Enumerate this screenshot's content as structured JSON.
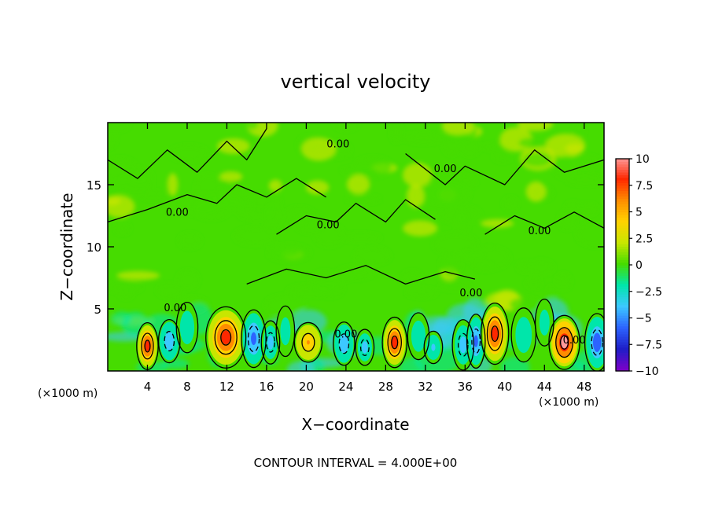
{
  "chart_data": {
    "type": "heatmap",
    "title": "vertical velocity",
    "xlabel": "X−coordinate",
    "ylabel": "Z−coordinate",
    "xunit_left": "(×1000 m)",
    "xunit_right": "(×1000 m)",
    "footer": "CONTOUR INTERVAL = 4.000E+00",
    "xlim": [
      0,
      50
    ],
    "ylim": [
      0,
      20
    ],
    "xticks": [
      4,
      8,
      12,
      16,
      20,
      24,
      28,
      32,
      36,
      40,
      44,
      48
    ],
    "xtick_labels": [
      "4",
      "8",
      "12",
      "16",
      "20",
      "24",
      "28",
      "32",
      "36",
      "40",
      "44",
      "48"
    ],
    "yticks": [
      5,
      10,
      15
    ],
    "ytick_labels": [
      "5",
      "10",
      "15"
    ],
    "colorbar": {
      "min": -10,
      "max": 10,
      "ticks": [
        10,
        7.5,
        5,
        2.5,
        0,
        -2.5,
        -5,
        -7.5,
        -10
      ],
      "tick_labels": [
        "10",
        "7.5",
        "5",
        "2.5",
        "0",
        "−2.5",
        "−5",
        "−7.5",
        "−10"
      ],
      "colors": [
        "#7b00c8",
        "#1e1ec8",
        "#2d64ff",
        "#3cc8ff",
        "#00e6aa",
        "#46dc00",
        "#c8e600",
        "#ffd200",
        "#ff8c00",
        "#ff2800",
        "#ff9a9a"
      ]
    },
    "background_value": 0.4,
    "cells": [
      {
        "x": 4.0,
        "z": 2.0,
        "sx": 0.7,
        "sz": 1.3,
        "w": 8.5
      },
      {
        "x": 6.2,
        "z": 2.4,
        "sx": 0.7,
        "sz": 1.2,
        "w": -5.0
      },
      {
        "x": 8.0,
        "z": 3.5,
        "sx": 0.7,
        "sz": 1.4,
        "w": -2.5
      },
      {
        "x": 11.9,
        "z": 2.7,
        "sx": 1.3,
        "sz": 1.7,
        "w": 8.0
      },
      {
        "x": 14.7,
        "z": 2.6,
        "sx": 0.8,
        "sz": 1.6,
        "w": -6.0
      },
      {
        "x": 16.4,
        "z": 2.3,
        "sx": 0.6,
        "sz": 1.2,
        "w": -4.0
      },
      {
        "x": 17.9,
        "z": 3.2,
        "sx": 0.6,
        "sz": 1.4,
        "w": -2.0
      },
      {
        "x": 20.2,
        "z": 2.3,
        "sx": 0.9,
        "sz": 1.1,
        "w": 5.5
      },
      {
        "x": 23.8,
        "z": 2.2,
        "sx": 0.7,
        "sz": 1.2,
        "w": -5.0
      },
      {
        "x": 25.9,
        "z": 1.9,
        "sx": 0.6,
        "sz": 1.0,
        "w": -4.0
      },
      {
        "x": 28.9,
        "z": 2.3,
        "sx": 0.8,
        "sz": 1.4,
        "w": 8.0
      },
      {
        "x": 31.3,
        "z": 2.8,
        "sx": 0.7,
        "sz": 1.3,
        "w": -2.5
      },
      {
        "x": 32.8,
        "z": 1.9,
        "sx": 0.6,
        "sz": 0.9,
        "w": -3.5
      },
      {
        "x": 35.8,
        "z": 2.1,
        "sx": 0.7,
        "sz": 1.4,
        "w": -4.5
      },
      {
        "x": 37.1,
        "z": 2.4,
        "sx": 0.6,
        "sz": 1.5,
        "w": -6.0
      },
      {
        "x": 39.0,
        "z": 3.0,
        "sx": 0.9,
        "sz": 1.7,
        "w": 8.5
      },
      {
        "x": 41.9,
        "z": 2.9,
        "sx": 0.8,
        "sz": 1.5,
        "w": -3.0
      },
      {
        "x": 44.0,
        "z": 3.9,
        "sx": 0.6,
        "sz": 1.3,
        "w": -2.0
      },
      {
        "x": 46.0,
        "z": 2.3,
        "sx": 1.0,
        "sz": 1.5,
        "w": 10.5
      },
      {
        "x": 49.3,
        "z": 2.3,
        "sx": 0.8,
        "sz": 1.6,
        "w": -7.0
      }
    ],
    "contour_labels": [
      {
        "text": "0.00",
        "x": 6.8,
        "z": 4.8
      },
      {
        "text": "0.00",
        "x": 24.0,
        "z": 2.7
      },
      {
        "text": "0.00",
        "x": 36.6,
        "z": 6.0
      },
      {
        "text": "0.00",
        "x": 47.0,
        "z": 2.2
      },
      {
        "text": "0.00",
        "x": 7.0,
        "z": 12.5
      },
      {
        "text": "0.00",
        "x": 43.5,
        "z": 11.0
      },
      {
        "text": "0.00",
        "x": 22.2,
        "z": 11.5
      },
      {
        "text": "0.00",
        "x": 23.2,
        "z": 18.0
      },
      {
        "text": "0.00",
        "x": 34.0,
        "z": 16.0
      }
    ]
  }
}
